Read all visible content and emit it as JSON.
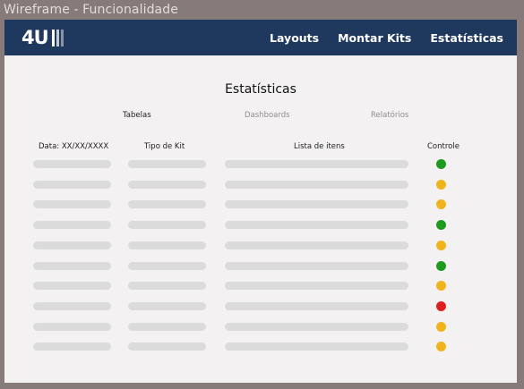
{
  "window": {
    "title": "Wireframe - Funcionalidade"
  },
  "navbar": {
    "logo_text": "4U",
    "logo_bar_colors": [
      "#ffffff",
      "#c2c7d0",
      "#8a93a5"
    ],
    "links": [
      "Layouts",
      "Montar Kits",
      "Estatísticas"
    ]
  },
  "page": {
    "title": "Estatísticas"
  },
  "tabs": [
    {
      "label": "Tabelas",
      "active": true
    },
    {
      "label": "Dashboards",
      "active": false
    },
    {
      "label": "Relatórios",
      "active": false
    }
  ],
  "table": {
    "headers": [
      "Data: XX/XX/XXXX",
      "Tipo de Kit",
      "Lista de itens",
      "Controle"
    ],
    "status_colors": {
      "green": "#1e9a1e",
      "yellow": "#f0b31c",
      "red": "#df1f1f"
    },
    "rows": [
      {
        "status": "green"
      },
      {
        "status": "yellow"
      },
      {
        "status": "yellow"
      },
      {
        "status": "green"
      },
      {
        "status": "yellow"
      },
      {
        "status": "green"
      },
      {
        "status": "yellow"
      },
      {
        "status": "red"
      },
      {
        "status": "yellow"
      },
      {
        "status": "yellow"
      }
    ]
  }
}
